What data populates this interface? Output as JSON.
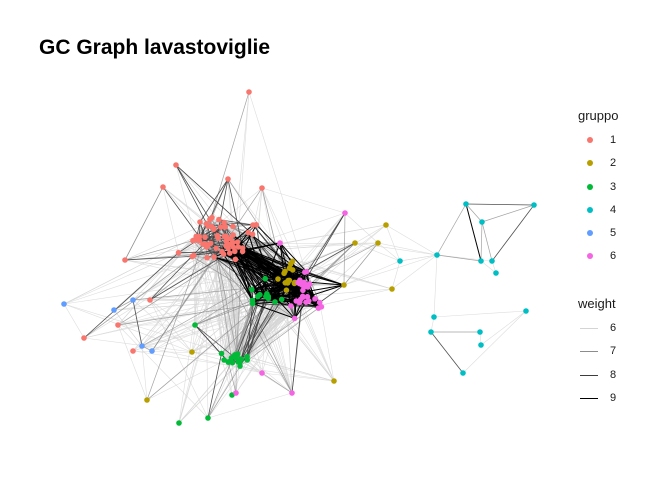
{
  "chart_data": {
    "type": "network",
    "title": "GC Graph lavastoviglie",
    "legend_position": "right",
    "group_legend": {
      "title": "gruppo",
      "entries": [
        {
          "label": "1",
          "color": "#F8766D"
        },
        {
          "label": "2",
          "color": "#B79F00"
        },
        {
          "label": "3",
          "color": "#00BA38"
        },
        {
          "label": "4",
          "color": "#00BFC4"
        },
        {
          "label": "5",
          "color": "#619CFF"
        },
        {
          "label": "6",
          "color": "#F564E3"
        }
      ]
    },
    "weight_legend": {
      "title": "weight",
      "entries": [
        {
          "label": "6",
          "level": 6
        },
        {
          "label": "7",
          "level": 7
        },
        {
          "label": "8",
          "level": 8
        },
        {
          "label": "9",
          "level": 9
        }
      ]
    },
    "grid": false,
    "axes": false
  }
}
